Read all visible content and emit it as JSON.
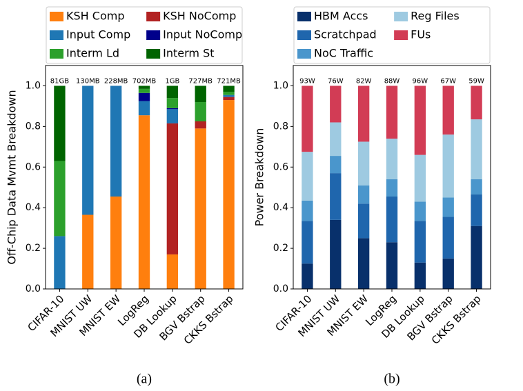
{
  "chart_data": [
    {
      "type": "bar",
      "stacked": true,
      "ylabel": "Off-Chip Data Mvmt Breakdown",
      "caption": "(a)",
      "categories": [
        "CIFAR-10",
        "MNIST UW",
        "MNIST EW",
        "LogReg",
        "DB Lookup",
        "BGV Bstrap",
        "CKKS Bstrap"
      ],
      "annotations": [
        "81GB",
        "130MB",
        "228MB",
        "702MB",
        "1GB",
        "727MB",
        "721MB"
      ],
      "series": [
        {
          "name": "KSH Comp",
          "color": "#ff7f0e",
          "values": [
            0,
            0.365,
            0.455,
            0.855,
            0.17,
            0.79,
            0.93
          ]
        },
        {
          "name": "KSH NoComp",
          "color": "#b22222",
          "values": [
            0,
            0,
            0,
            0,
            0.645,
            0.035,
            0.015
          ]
        },
        {
          "name": "Input Comp",
          "color": "#1f77b4",
          "values": [
            0.26,
            0.635,
            0.545,
            0.07,
            0.07,
            0,
            0.01
          ]
        },
        {
          "name": "Input NoComp",
          "color": "#00008b",
          "values": [
            0,
            0,
            0,
            0.04,
            0.005,
            0,
            0
          ]
        },
        {
          "name": "Interm Ld",
          "color": "#2ca02c",
          "values": [
            0.37,
            0,
            0,
            0.02,
            0.05,
            0.095,
            0.015
          ]
        },
        {
          "name": "Interm St",
          "color": "#006400",
          "values": [
            0.37,
            0,
            0,
            0.015,
            0.06,
            0.08,
            0.03
          ]
        }
      ],
      "legend_fill": "row",
      "ylim": [
        0,
        1.1
      ],
      "yticks": [
        {
          "value": 0,
          "label": "0.0"
        },
        0.2,
        0.4,
        0.6,
        0.8,
        {
          "value": 1,
          "label": "1.0"
        }
      ]
    },
    {
      "type": "bar",
      "stacked": true,
      "ylabel": "Power Breakdown",
      "caption": "(b)",
      "categories": [
        "CIFAR-10",
        "MNIST UW",
        "MNIST EW",
        "LogReg",
        "DB Lookup",
        "BGV Bstrap",
        "CKKS Bstrap"
      ],
      "annotations": [
        "93W",
        "76W",
        "82W",
        "88W",
        "96W",
        "67W",
        "59W"
      ],
      "series": [
        {
          "name": "HBM Accs",
          "color": "#08306b",
          "values": [
            0.125,
            0.34,
            0.25,
            0.23,
            0.13,
            0.15,
            0.31
          ]
        },
        {
          "name": "Scratchpad",
          "color": "#1f66ad",
          "values": [
            0.21,
            0.23,
            0.17,
            0.225,
            0.205,
            0.205,
            0.155
          ]
        },
        {
          "name": "NoC Traffic",
          "color": "#4a96cc",
          "values": [
            0.1,
            0.085,
            0.09,
            0.085,
            0.095,
            0.095,
            0.075
          ]
        },
        {
          "name": "Reg Files",
          "color": "#9ecae1",
          "values": [
            0.24,
            0.165,
            0.215,
            0.2,
            0.23,
            0.31,
            0.295
          ]
        },
        {
          "name": "FUs",
          "color": "#d23c55",
          "values": [
            0.325,
            0.18,
            0.275,
            0.26,
            0.34,
            0.24,
            0.165
          ]
        }
      ],
      "legend_fill": "column",
      "ylim": [
        0,
        1.1
      ],
      "yticks": [
        {
          "value": 0,
          "label": "0.0"
        },
        0.2,
        0.4,
        0.6,
        0.8,
        {
          "value": 1,
          "label": "1.0"
        }
      ]
    }
  ]
}
